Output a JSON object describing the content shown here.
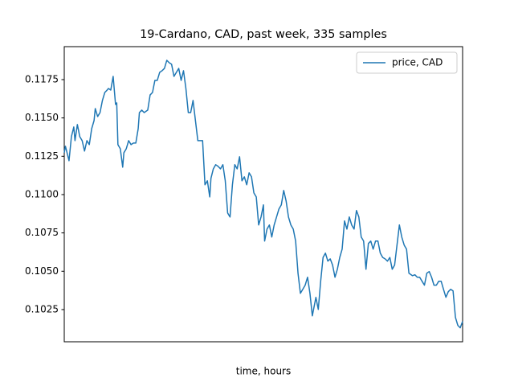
{
  "chart_data": {
    "type": "line",
    "title": "19-Cardano, CAD, past week, 335 samples",
    "xlabel": "time, hours",
    "legend": "upper right",
    "grid": false,
    "xlim": [
      0,
      334
    ],
    "ylim": [
      0.1004,
      0.11965
    ],
    "yticks": [
      0.1025,
      {
        "value": 0.105,
        "label": "0.1050"
      },
      0.1075,
      {
        "value": 0.11,
        "label": "0.1100"
      },
      0.1125,
      {
        "value": 0.115,
        "label": "0.1150"
      },
      0.1175
    ],
    "x": [
      0,
      1,
      4,
      6,
      8,
      9,
      11,
      13,
      15,
      17,
      19,
      21,
      23,
      25,
      26,
      28,
      30,
      32,
      34,
      36,
      37,
      39,
      41,
      43,
      44,
      45,
      47,
      49,
      50,
      52,
      54,
      56,
      58,
      60,
      62,
      63,
      65,
      67,
      70,
      72,
      74,
      76,
      78,
      80,
      82,
      84,
      86,
      88,
      90,
      92,
      94,
      96,
      98,
      100,
      102,
      104,
      106,
      108,
      110,
      112,
      114,
      116,
      118,
      120,
      122,
      123,
      125,
      127,
      129,
      131,
      133,
      135,
      137,
      139,
      141,
      143,
      145,
      147,
      149,
      151,
      153,
      155,
      157,
      159,
      161,
      163,
      165,
      167,
      168,
      170,
      172,
      174,
      176,
      178,
      180,
      182,
      184,
      186,
      188,
      190,
      192,
      194,
      196,
      198,
      200,
      202,
      204,
      206,
      208,
      211,
      213,
      215,
      217,
      219,
      221,
      223,
      225,
      227,
      229,
      231,
      233,
      235,
      237,
      239,
      241,
      243,
      245,
      247,
      249,
      251,
      253,
      255,
      257,
      259,
      261,
      263,
      265,
      267,
      269,
      271,
      273,
      275,
      277,
      279,
      281,
      283,
      285,
      287,
      289,
      292,
      294,
      296,
      298,
      300,
      302,
      304,
      306,
      308,
      310,
      312,
      314,
      316,
      318,
      320,
      322,
      324,
      326,
      328,
      330,
      332,
      334
    ],
    "series": [
      {
        "name": "price, CAD",
        "color": "#1f77b4",
        "values": [
          0.11273,
          0.11315,
          0.11221,
          0.11378,
          0.11441,
          0.11352,
          0.11457,
          0.11378,
          0.11352,
          0.11284,
          0.11352,
          0.11326,
          0.1143,
          0.11483,
          0.11561,
          0.11509,
          0.11535,
          0.11614,
          0.11666,
          0.11682,
          0.11692,
          0.11682,
          0.11771,
          0.11588,
          0.11598,
          0.11326,
          0.11299,
          0.11179,
          0.11273,
          0.11299,
          0.11352,
          0.11326,
          0.11336,
          0.11336,
          0.1143,
          0.11535,
          0.11551,
          0.11535,
          0.11551,
          0.1165,
          0.11666,
          0.11745,
          0.11745,
          0.11797,
          0.11808,
          0.11823,
          0.11876,
          0.1186,
          0.1185,
          0.11771,
          0.11797,
          0.11823,
          0.11745,
          0.11808,
          0.11692,
          0.11535,
          0.11535,
          0.11614,
          0.11483,
          0.11352,
          0.11352,
          0.11352,
          0.11064,
          0.1109,
          0.10985,
          0.11106,
          0.11168,
          0.11195,
          0.11184,
          0.11168,
          0.11195,
          0.1109,
          0.1088,
          0.10854,
          0.11064,
          0.11195,
          0.11168,
          0.11247,
          0.1109,
          0.11116,
          0.11064,
          0.11142,
          0.11116,
          0.11011,
          0.10985,
          0.10802,
          0.10854,
          0.10933,
          0.10697,
          0.10775,
          0.10802,
          0.10723,
          0.10802,
          0.10854,
          0.10906,
          0.10933,
          0.11027,
          0.10959,
          0.10854,
          0.10802,
          0.10775,
          0.10697,
          0.10487,
          0.10356,
          0.10382,
          0.10409,
          0.10461,
          0.10356,
          0.10209,
          0.1033,
          0.10251,
          0.10435,
          0.1059,
          0.10618,
          0.10566,
          0.10581,
          0.1054,
          0.10461,
          0.10513,
          0.1059,
          0.10644,
          0.10828,
          0.10775,
          0.10854,
          0.10802,
          0.10775,
          0.10896,
          0.10854,
          0.10723,
          0.10697,
          0.10513,
          0.10681,
          0.10697,
          0.10644,
          0.10697,
          0.10697,
          0.10618,
          0.1059,
          0.10581,
          0.10566,
          0.1059,
          0.10513,
          0.1054,
          0.10671,
          0.10802,
          0.10723,
          0.10671,
          0.10644,
          0.10487,
          0.10471,
          0.10477,
          0.10461,
          0.10461,
          0.10435,
          0.10409,
          0.10487,
          0.10498,
          0.10461,
          0.10409,
          0.10409,
          0.10435,
          0.10435,
          0.10382,
          0.1033,
          0.10367,
          0.10382,
          0.10372,
          0.10199,
          0.10147,
          0.10131,
          0.10173
        ]
      }
    ]
  }
}
